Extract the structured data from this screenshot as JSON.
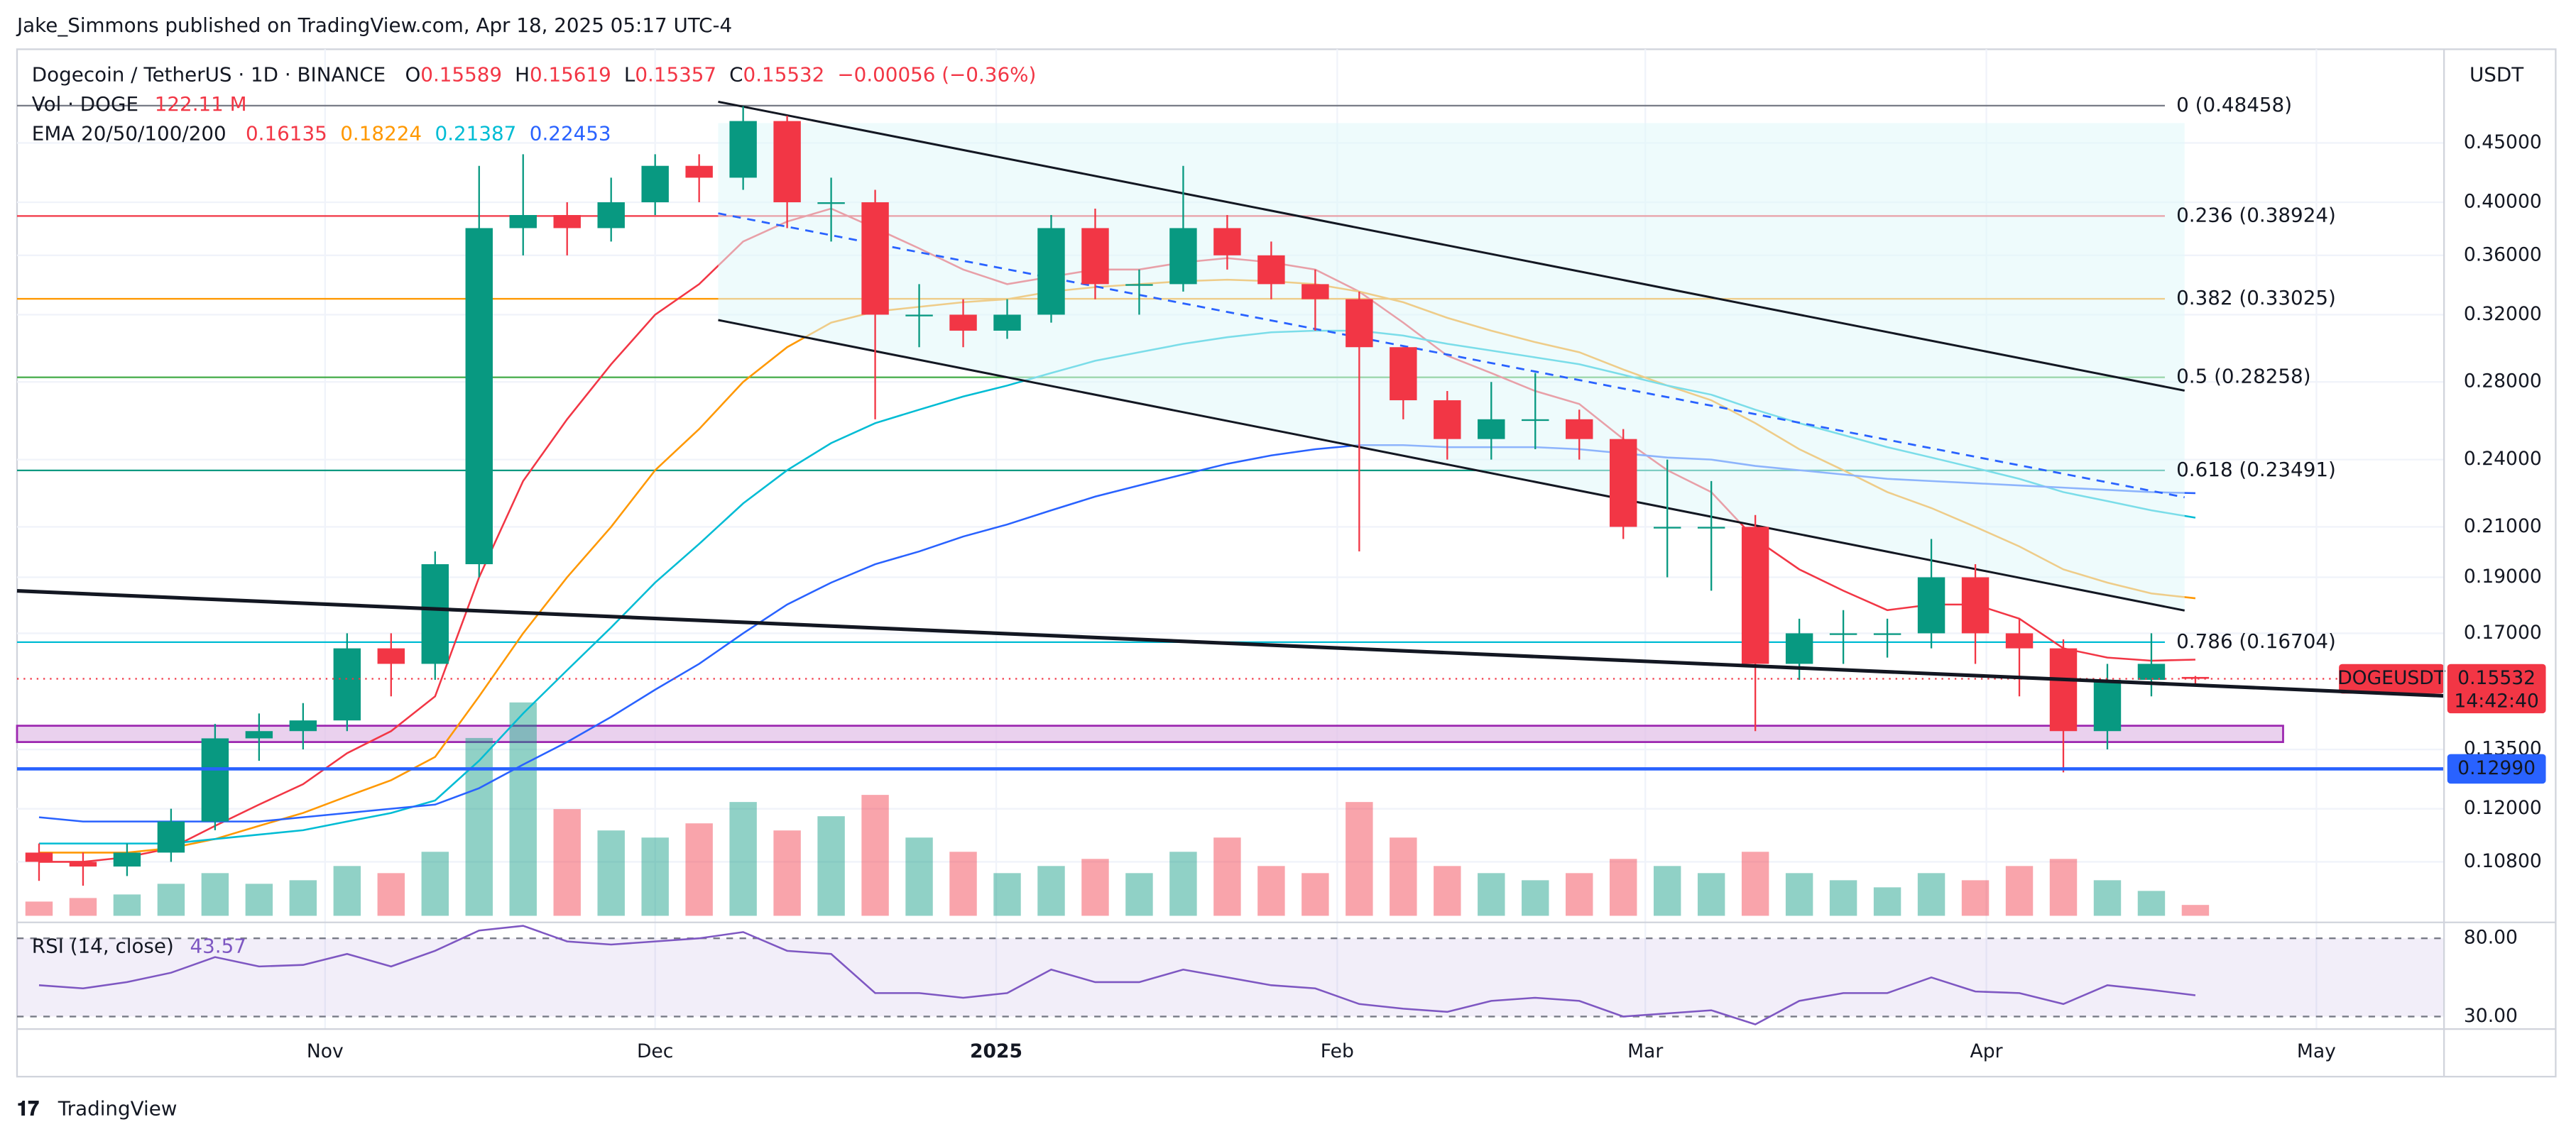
{
  "header": {
    "attribution": "Jake_Simmons published on TradingView.com, Apr 18, 2025 05:17 UTC-4"
  },
  "chart_data": {
    "type": "candlestick",
    "symbol": "Dogecoin / TetherUS · 1D · BINANCE",
    "legend": {
      "o_label": "O",
      "open": 0.15589,
      "h_label": "H",
      "high": 0.15619,
      "l_label": "L",
      "low": 0.15357,
      "c_label": "C",
      "close": 0.15532,
      "change": "−0.00056 (−0.36%)"
    },
    "volume_title": "Vol · DOGE",
    "volume_legend": "122.11 M",
    "ema_title": "EMA 20/50/100/200",
    "currency": "USDT",
    "log_scale": true,
    "ylim": [
      0.0964,
      0.542
    ],
    "yticks": [
      {
        "value": 0.45,
        "label": "0.45000"
      },
      {
        "value": 0.4,
        "label": "0.40000"
      },
      {
        "value": 0.36,
        "label": "0.36000"
      },
      {
        "value": 0.32,
        "label": "0.32000"
      },
      {
        "value": 0.28,
        "label": "0.28000"
      },
      {
        "value": 0.24,
        "label": "0.24000"
      },
      {
        "value": 0.21,
        "label": "0.21000"
      },
      {
        "value": 0.19,
        "label": "0.19000"
      },
      {
        "value": 0.17,
        "label": "0.17000"
      },
      {
        "value": 0.135,
        "label": "0.13500"
      },
      {
        "value": 0.12,
        "label": "0.12000"
      },
      {
        "value": 0.108,
        "label": "0.10800"
      }
    ],
    "xlim": [
      0,
      55.15
    ],
    "xticks": [
      {
        "value": 7,
        "label": "Nov"
      },
      {
        "value": 14.5,
        "label": "Dec"
      },
      {
        "value": 22.25,
        "label": "2025"
      },
      {
        "value": 30,
        "label": "Feb"
      },
      {
        "value": 37,
        "label": "Mar"
      },
      {
        "value": 44.75,
        "label": "Apr"
      },
      {
        "value": 52.25,
        "label": "May"
      }
    ],
    "grid": true,
    "up_color": "#089981",
    "down_color": "#f23645",
    "candles": {
      "open": [
        0.11,
        0.108,
        0.107,
        0.11,
        0.117,
        0.138,
        0.14,
        0.143,
        0.165,
        0.16,
        0.195,
        0.38,
        0.39,
        0.38,
        0.4,
        0.43,
        0.42,
        0.47,
        0.4,
        0.4,
        0.32,
        0.32,
        0.31,
        0.32,
        0.38,
        0.34,
        0.34,
        0.38,
        0.36,
        0.34,
        0.33,
        0.3,
        0.27,
        0.25,
        0.26,
        0.26,
        0.25,
        0.21,
        0.21,
        0.21,
        0.16,
        0.17,
        0.17,
        0.17,
        0.19,
        0.17,
        0.165,
        0.14,
        0.155,
        0.15589
      ],
      "high": [
        0.112,
        0.11,
        0.112,
        0.12,
        0.142,
        0.145,
        0.148,
        0.17,
        0.17,
        0.2,
        0.43,
        0.44,
        0.4,
        0.42,
        0.44,
        0.44,
        0.484,
        0.475,
        0.42,
        0.41,
        0.34,
        0.33,
        0.33,
        0.39,
        0.395,
        0.35,
        0.43,
        0.39,
        0.37,
        0.35,
        0.335,
        0.3,
        0.275,
        0.28,
        0.285,
        0.265,
        0.255,
        0.24,
        0.23,
        0.215,
        0.175,
        0.178,
        0.175,
        0.205,
        0.195,
        0.175,
        0.168,
        0.16,
        0.17,
        0.15619
      ],
      "low": [
        0.104,
        0.103,
        0.105,
        0.108,
        0.115,
        0.132,
        0.135,
        0.14,
        0.15,
        0.155,
        0.19,
        0.36,
        0.36,
        0.37,
        0.39,
        0.4,
        0.41,
        0.38,
        0.37,
        0.26,
        0.3,
        0.3,
        0.305,
        0.315,
        0.33,
        0.32,
        0.335,
        0.35,
        0.33,
        0.31,
        0.2,
        0.26,
        0.24,
        0.24,
        0.245,
        0.24,
        0.205,
        0.19,
        0.185,
        0.14,
        0.155,
        0.16,
        0.162,
        0.165,
        0.16,
        0.15,
        0.129,
        0.135,
        0.15,
        0.15357
      ],
      "close": [
        0.108,
        0.107,
        0.11,
        0.117,
        0.138,
        0.14,
        0.143,
        0.165,
        0.16,
        0.195,
        0.38,
        0.39,
        0.38,
        0.4,
        0.43,
        0.42,
        0.47,
        0.4,
        0.4,
        0.32,
        0.32,
        0.31,
        0.32,
        0.38,
        0.34,
        0.34,
        0.38,
        0.36,
        0.34,
        0.33,
        0.3,
        0.27,
        0.25,
        0.26,
        0.26,
        0.25,
        0.21,
        0.21,
        0.21,
        0.16,
        0.17,
        0.17,
        0.17,
        0.19,
        0.17,
        0.165,
        0.14,
        0.155,
        0.16,
        0.15532
      ]
    },
    "volume": [
      160,
      200,
      240,
      360,
      480,
      360,
      400,
      560,
      480,
      720,
      2000,
      2400,
      1200,
      960,
      880,
      1040,
      1280,
      960,
      1120,
      1360,
      880,
      720,
      480,
      560,
      640,
      480,
      720,
      880,
      560,
      480,
      1280,
      880,
      560,
      480,
      400,
      480,
      640,
      560,
      480,
      720,
      480,
      400,
      320,
      480,
      400,
      560,
      640,
      400,
      280,
      122.11
    ],
    "series": [
      {
        "color": "#f23645",
        "last": 0.16135,
        "values": [
          0.108,
          0.108,
          0.109,
          0.111,
          0.116,
          0.121,
          0.126,
          0.134,
          0.14,
          0.15,
          0.19,
          0.23,
          0.26,
          0.29,
          0.32,
          0.34,
          0.37,
          0.385,
          0.395,
          0.38,
          0.365,
          0.35,
          0.34,
          0.345,
          0.35,
          0.35,
          0.355,
          0.358,
          0.355,
          0.35,
          0.335,
          0.315,
          0.295,
          0.285,
          0.275,
          0.268,
          0.25,
          0.235,
          0.225,
          0.205,
          0.193,
          0.185,
          0.178,
          0.18,
          0.18,
          0.175,
          0.165,
          0.162,
          0.161,
          0.16135
        ]
      },
      {
        "color": "#ff9800",
        "last": 0.18224,
        "values": [
          0.11,
          0.11,
          0.11,
          0.111,
          0.113,
          0.116,
          0.119,
          0.123,
          0.127,
          0.133,
          0.15,
          0.17,
          0.19,
          0.21,
          0.235,
          0.255,
          0.28,
          0.3,
          0.315,
          0.322,
          0.325,
          0.328,
          0.33,
          0.335,
          0.338,
          0.34,
          0.342,
          0.343,
          0.342,
          0.34,
          0.335,
          0.328,
          0.318,
          0.31,
          0.303,
          0.297,
          0.287,
          0.278,
          0.27,
          0.258,
          0.245,
          0.235,
          0.225,
          0.218,
          0.21,
          0.202,
          0.193,
          0.188,
          0.184,
          0.18224
        ]
      },
      {
        "color": "#00bcd4",
        "last": 0.21387,
        "values": [
          0.112,
          0.112,
          0.112,
          0.112,
          0.113,
          0.114,
          0.115,
          0.117,
          0.119,
          0.122,
          0.132,
          0.145,
          0.158,
          0.172,
          0.188,
          0.203,
          0.22,
          0.235,
          0.248,
          0.258,
          0.265,
          0.272,
          0.278,
          0.285,
          0.292,
          0.297,
          0.302,
          0.306,
          0.309,
          0.31,
          0.31,
          0.307,
          0.302,
          0.298,
          0.294,
          0.29,
          0.284,
          0.278,
          0.273,
          0.265,
          0.258,
          0.252,
          0.246,
          0.241,
          0.236,
          0.231,
          0.225,
          0.221,
          0.217,
          0.21387
        ]
      },
      {
        "color": "#2962ff",
        "last": 0.22453,
        "values": [
          0.118,
          0.117,
          0.117,
          0.117,
          0.117,
          0.117,
          0.118,
          0.119,
          0.12,
          0.121,
          0.125,
          0.131,
          0.137,
          0.144,
          0.152,
          0.16,
          0.17,
          0.18,
          0.188,
          0.195,
          0.2,
          0.206,
          0.211,
          0.217,
          0.223,
          0.228,
          0.233,
          0.238,
          0.242,
          0.245,
          0.247,
          0.247,
          0.246,
          0.246,
          0.246,
          0.245,
          0.243,
          0.241,
          0.24,
          0.237,
          0.235,
          0.233,
          0.231,
          0.23,
          0.229,
          0.228,
          0.227,
          0.226,
          0.225,
          0.22453
        ]
      }
    ],
    "fib_levels": [
      {
        "label": "0 (0.48458)",
        "value": 0.48458,
        "color": "#787b86"
      },
      {
        "label": "0.236 (0.38924)",
        "value": 0.38924,
        "color": "#f23645"
      },
      {
        "label": "0.382 (0.33025)",
        "value": 0.33025,
        "color": "#ff9800"
      },
      {
        "label": "0.5 (0.28258)",
        "value": 0.28258,
        "color": "#4caf50"
      },
      {
        "label": "0.618 (0.23491)",
        "value": 0.23491,
        "color": "#089981"
      },
      {
        "label": "0.786 (0.16704)",
        "value": 0.16704,
        "color": "#00bcd4"
      }
    ],
    "price_line": {
      "symbol": "DOGEUSDT",
      "value": 0.15532,
      "countdown": "14:42:40"
    },
    "support_line": {
      "value": 0.1299,
      "label": "0.12990"
    },
    "zone": {
      "top": 0.1415,
      "bottom": 0.137
    },
    "rsi": {
      "label": "RSI (14, close)",
      "value": 43.57,
      "ylim": [
        22,
        86
      ],
      "yticks": [
        {
          "value": 80,
          "label": "80.00"
        },
        {
          "value": 30,
          "label": "30.00"
        }
      ],
      "values": [
        50,
        48,
        52,
        58,
        68,
        62,
        63,
        70,
        62,
        72,
        85,
        88,
        78,
        76,
        78,
        80,
        84,
        72,
        70,
        45,
        45,
        42,
        45,
        60,
        52,
        52,
        60,
        55,
        50,
        48,
        38,
        35,
        33,
        40,
        42,
        40,
        30,
        32,
        34,
        25,
        40,
        45,
        45,
        55,
        46,
        45,
        38,
        50,
        47,
        43.57
      ]
    }
  },
  "footer": {
    "brand": "TradingView"
  }
}
